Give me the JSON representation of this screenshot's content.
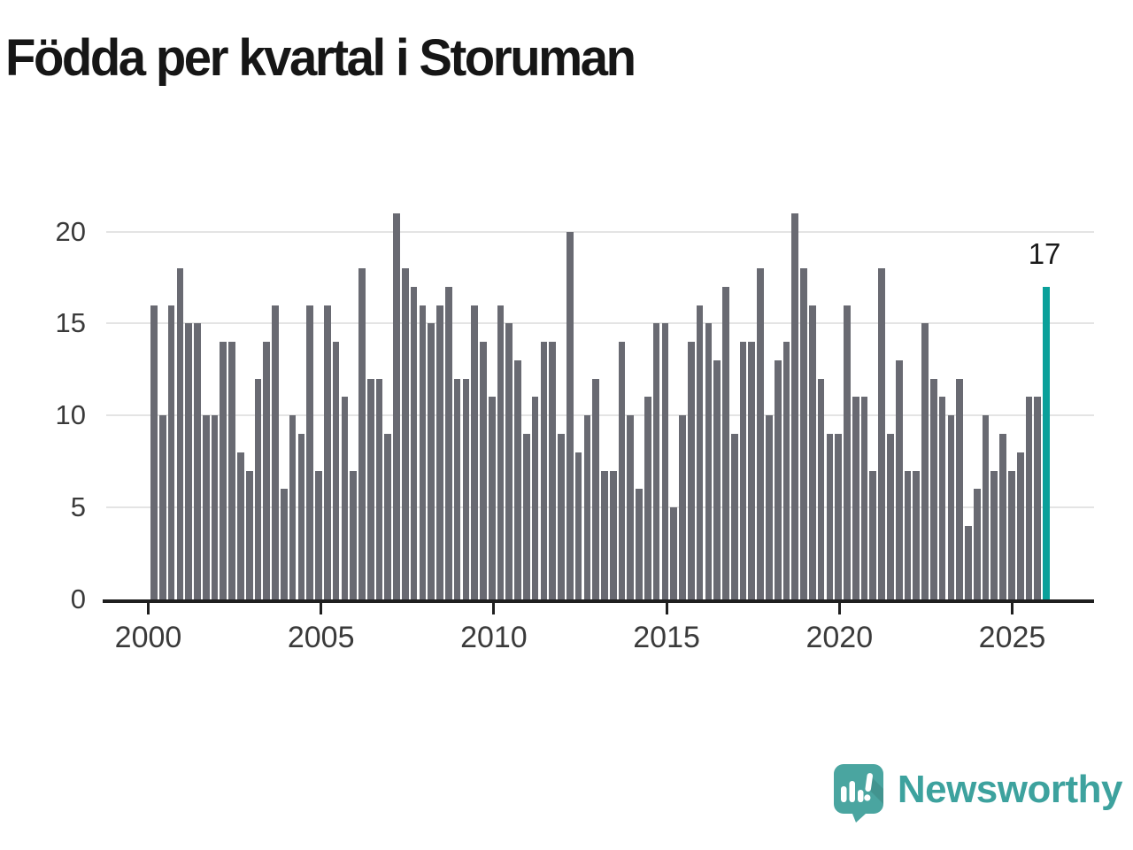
{
  "title": "Födda per kvartal i Storuman",
  "chart_data": {
    "type": "bar",
    "title": "Födda per kvartal i Storuman",
    "frequency": "quarterly",
    "x_start": "2000-Q1",
    "x_end": "2025-Q4",
    "values": [
      16,
      10,
      16,
      18,
      15,
      15,
      10,
      10,
      14,
      14,
      8,
      7,
      12,
      14,
      16,
      6,
      10,
      9,
      16,
      7,
      16,
      14,
      11,
      7,
      18,
      12,
      12,
      9,
      21,
      18,
      17,
      16,
      15,
      16,
      17,
      12,
      12,
      16,
      14,
      11,
      16,
      15,
      13,
      9,
      11,
      14,
      14,
      9,
      20,
      8,
      10,
      12,
      7,
      7,
      14,
      10,
      6,
      11,
      15,
      15,
      5,
      10,
      14,
      16,
      15,
      13,
      17,
      9,
      14,
      14,
      18,
      10,
      13,
      14,
      21,
      18,
      16,
      12,
      9,
      9,
      16,
      11,
      11,
      7,
      18,
      9,
      13,
      7,
      7,
      15,
      12,
      11,
      10,
      12,
      4,
      6,
      10,
      7,
      9,
      7,
      8,
      11,
      11,
      17
    ],
    "y_ticks": [
      0,
      5,
      10,
      15,
      20
    ],
    "ylim": [
      0,
      22
    ],
    "x_tick_labels": [
      "2000",
      "2005",
      "2010",
      "2015",
      "2020",
      "2025"
    ],
    "grid": "horizontal",
    "legend": "none",
    "bar_color": "#696a72",
    "highlight_color": "#0aa09a",
    "highlight_index": 103,
    "annotation": {
      "text": "17",
      "value": 17,
      "target": "last-bar"
    }
  },
  "logo": {
    "text": "Newsworthy",
    "badge_icon": "speech-bubble-bar-chart-exclamation",
    "text_color": "#3da29e",
    "badge_color": "#4aa5a0"
  }
}
